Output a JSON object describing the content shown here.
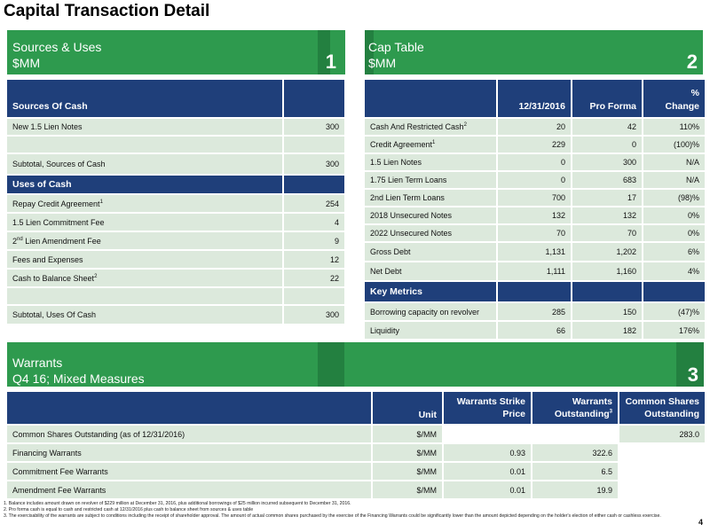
{
  "page": {
    "title": "Capital Transaction Detail",
    "page_number": "4"
  },
  "sources_uses": {
    "banner_title": "Sources & Uses",
    "banner_subtitle": "$MM",
    "banner_number": "1",
    "sources_header": "Sources Of Cash",
    "sources_rows": [
      {
        "label": "New 1.5 Lien Notes",
        "value": "300"
      },
      {
        "label": "",
        "value": ""
      },
      {
        "label": "Subtotal, Sources of Cash",
        "value": "300"
      }
    ],
    "uses_header": "Uses of Cash",
    "uses_rows": [
      {
        "label": "Repay Credit Agreement",
        "sup": "1",
        "value": "254"
      },
      {
        "label": "1.5 Lien Commitment Fee",
        "sup": "",
        "value": "4"
      },
      {
        "label": "2",
        "sup": "nd",
        "label_rest": " Lien Amendment Fee",
        "value": "9"
      },
      {
        "label": "Fees and Expenses",
        "sup": "",
        "value": "12"
      },
      {
        "label": "Cash to Balance Sheet",
        "sup": "2",
        "value": "22"
      },
      {
        "label": "",
        "sup": "",
        "value": ""
      },
      {
        "label": "Subtotal, Uses Of Cash",
        "sup": "",
        "value": "300"
      }
    ]
  },
  "cap_table": {
    "banner_title": "Cap Table",
    "banner_subtitle": "$MM",
    "banner_number": "2",
    "col_date": "12/31/2016",
    "col_pro_forma": "Pro Forma",
    "col_pct_1": "%",
    "col_pct_2": "Change",
    "rows": [
      {
        "label": "Cash And Restricted Cash",
        "sup": "2",
        "a": "20",
        "b": "42",
        "c": "110%"
      },
      {
        "label": "Credit Agreement",
        "sup": "1",
        "a": "229",
        "b": "0",
        "c": "(100)%"
      },
      {
        "label": "1.5 Lien Notes",
        "sup": "",
        "a": "0",
        "b": "300",
        "c": "N/A"
      },
      {
        "label": "1.75 Lien Term Loans",
        "sup": "",
        "a": "0",
        "b": "683",
        "c": "N/A"
      },
      {
        "label": "2nd Lien Term Loans",
        "sup": "",
        "a": "700",
        "b": "17",
        "c": "(98)%"
      },
      {
        "label": "2018 Unsecured Notes",
        "sup": "",
        "a": "132",
        "b": "132",
        "c": "0%"
      },
      {
        "label": "2022 Unsecured Notes",
        "sup": "",
        "a": "70",
        "b": "70",
        "c": "0%"
      },
      {
        "label": "Gross Debt",
        "sup": "",
        "a": "1,131",
        "b": "1,202",
        "c": "6%"
      },
      {
        "label": "Net Debt",
        "sup": "",
        "a": "1,111",
        "b": "1,160",
        "c": "4%"
      }
    ],
    "metrics_header": "Key Metrics",
    "metrics_rows": [
      {
        "label": "Borrowing capacity on revolver",
        "a": "285",
        "b": "150",
        "c": "(47)%"
      },
      {
        "label": "Liquidity",
        "a": "66",
        "b": "182",
        "c": "176%"
      }
    ]
  },
  "warrants": {
    "banner_title": "Warrants",
    "banner_subtitle": "Q4 16; Mixed Measures",
    "banner_number": "3",
    "col_unit": "Unit",
    "col_strike_1": "Warrants Strike",
    "col_strike_2": "Price",
    "col_out_1": "Warrants",
    "col_out_2": "Outstanding",
    "col_out_sup": "3",
    "col_common_1": "Common Shares",
    "col_common_2": "Outstanding",
    "rows": [
      {
        "label": "Common Shares Outstanding (as of 12/31/2016)",
        "unit": "$/MM",
        "strike": "",
        "out": "",
        "common": "283.0"
      },
      {
        "label": "Financing Warrants",
        "unit": "$/MM",
        "strike": "0.93",
        "out": "322.6",
        "common": ""
      },
      {
        "label": "Commitment Fee Warrants",
        "unit": "$/MM",
        "strike": "0.01",
        "out": "6.5",
        "common": ""
      },
      {
        "label": "Amendment Fee Warrants",
        "unit": "$/MM",
        "strike": "0.01",
        "out": "19.9",
        "common": ""
      }
    ]
  },
  "footnotes": [
    "1.  Balance includes amount drawn on revolver of $229 million at December 31, 2016, plus additional borrowings of $25 million incurred subsequent to December 31, 2016.",
    "2.  Pro forma cash is equal to cash and restricted cash at 12/31/2016 plus cash to balance sheet from sources & uses table",
    "3.  The exercisability of the warrants are subject to conditions including the receipt of shareholder approval.  The amount of actual common shares purchased by the exercise of the Financing Warrants  could be significantly lower than the amount depicted depending on the holder's election of either cash or cashless exercise."
  ]
}
